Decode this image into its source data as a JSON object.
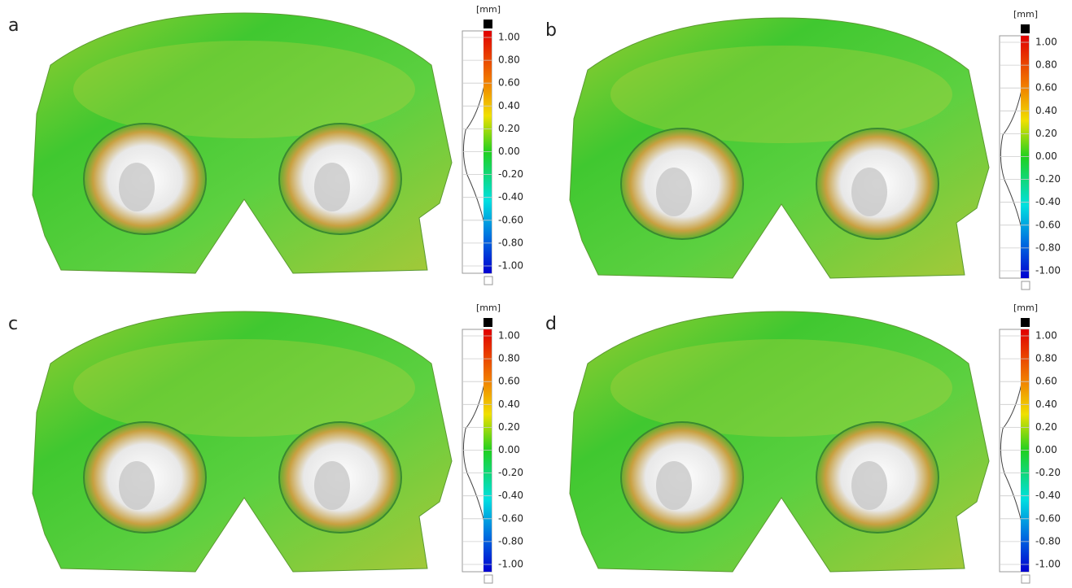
{
  "panels": [
    {
      "label": "a",
      "unit": "[mm]",
      "scale": [
        "1.00",
        "0.80",
        "0.60",
        "0.40",
        "0.20",
        "0.00",
        "-0.20",
        "-0.40",
        "-0.60",
        "-0.80",
        "-1.00"
      ]
    },
    {
      "label": "b",
      "unit": "[mm]",
      "scale": [
        "1.00",
        "0.80",
        "0.60",
        "0.40",
        "0.20",
        "0.00",
        "-0.20",
        "-0.40",
        "-0.60",
        "-0.80",
        "-1.00"
      ]
    },
    {
      "label": "c",
      "unit": "[mm]",
      "scale": [
        "1.00",
        "0.80",
        "0.60",
        "0.40",
        "0.20",
        "0.00",
        "-0.20",
        "-0.40",
        "-0.60",
        "-0.80",
        "-1.00"
      ]
    },
    {
      "label": "d",
      "unit": "[mm]",
      "scale": [
        "1.00",
        "0.80",
        "0.60",
        "0.40",
        "0.20",
        "0.00",
        "-0.20",
        "-0.40",
        "-0.60",
        "-0.80",
        "-1.00"
      ]
    }
  ]
}
